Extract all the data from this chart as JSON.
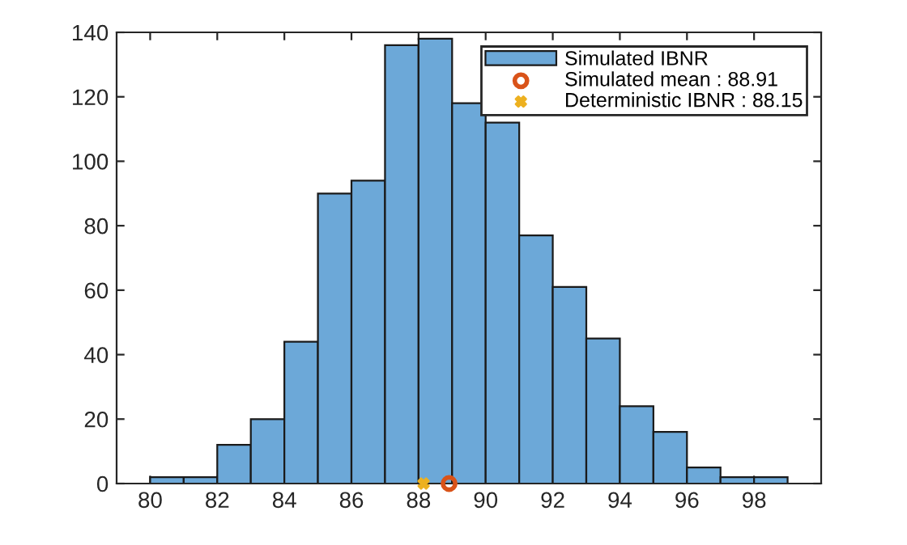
{
  "chart_data": {
    "type": "histogram",
    "bins": [
      80,
      81,
      82,
      83,
      84,
      85,
      86,
      87,
      88,
      89,
      90,
      91,
      92,
      93,
      94,
      95,
      96,
      97,
      98,
      99
    ],
    "series": [
      {
        "name": "Simulated IBNR",
        "color": "#6ca8d8",
        "values": [
          2,
          2,
          12,
          20,
          44,
          90,
          94,
          136,
          138,
          118,
          112,
          77,
          61,
          45,
          24,
          16,
          5,
          2,
          2
        ]
      },
      {
        "name": "Simulated mean : 88.91",
        "type": "scatter",
        "color": "#d95319",
        "marker": "circle",
        "x": [
          88.91
        ],
        "values": [
          0
        ]
      },
      {
        "name": "Deterministic IBNR : 88.15",
        "type": "scatter",
        "color": "#edb120",
        "marker": "cross",
        "x": [
          88.15
        ],
        "values": [
          0
        ]
      }
    ],
    "xlim": [
      79,
      100
    ],
    "xticks": [
      80,
      82,
      84,
      86,
      88,
      90,
      92,
      94,
      96,
      98
    ],
    "ylim": [
      0,
      140
    ],
    "yticks": [
      0,
      20,
      40,
      60,
      80,
      100,
      120,
      140
    ],
    "grid": false,
    "legend": "top right"
  }
}
